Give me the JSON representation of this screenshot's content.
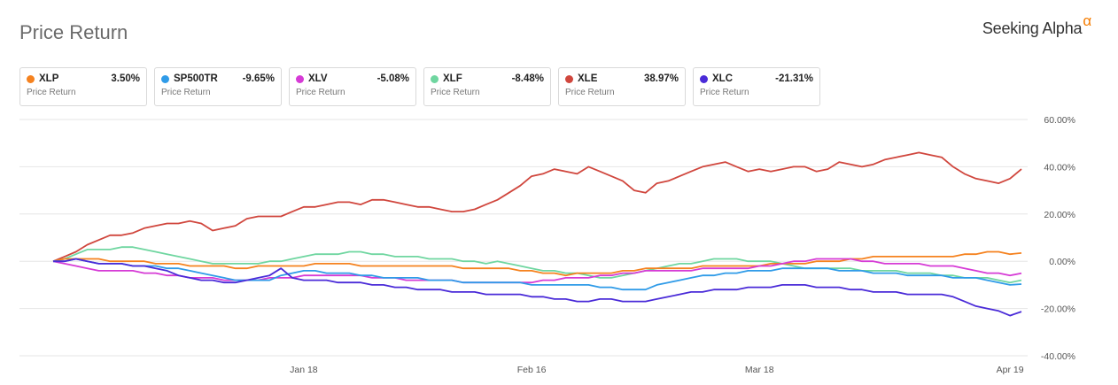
{
  "header": {
    "title": "Price Return",
    "brand": "Seeking Alpha",
    "brand_symbol": "α"
  },
  "legend": [
    {
      "ticker": "XLP",
      "value": "3.50%",
      "sub": "Price Return",
      "color": "#f5821f"
    },
    {
      "ticker": "SP500TR",
      "value": "-9.65%",
      "sub": "Price Return",
      "color": "#2f9be8"
    },
    {
      "ticker": "XLV",
      "value": "-5.08%",
      "sub": "Price Return",
      "color": "#d63bd6"
    },
    {
      "ticker": "XLF",
      "value": "-8.48%",
      "sub": "Price Return",
      "color": "#6fd6a0"
    },
    {
      "ticker": "XLE",
      "value": "38.97%",
      "sub": "Price Return",
      "color": "#d0463d"
    },
    {
      "ticker": "XLC",
      "value": "-21.31%",
      "sub": "Price Return",
      "color": "#4a2bd8"
    }
  ],
  "chart_data": {
    "type": "line",
    "title": "Price Return",
    "xlabel": "",
    "ylabel": "",
    "ylim": [
      -40,
      60
    ],
    "y_ticks": [
      "60.00%",
      "40.00%",
      "20.00%",
      "0.00%",
      "-20.00%",
      "-40.00%"
    ],
    "y_tick_values": [
      60,
      40,
      20,
      0,
      -20,
      -40
    ],
    "x_ticks": [
      "Jan 18",
      "Feb 16",
      "Mar 18",
      "Apr 19"
    ],
    "x_tick_index": [
      22,
      42,
      62,
      84
    ],
    "grid": true,
    "series": [
      {
        "name": "XLE",
        "color": "#d0463d",
        "values": [
          0,
          2,
          4,
          7,
          9,
          11,
          11,
          12,
          14,
          15,
          16,
          16,
          17,
          16,
          13,
          14,
          15,
          18,
          19,
          19,
          19,
          21,
          23,
          23,
          24,
          25,
          25,
          24,
          26,
          26,
          25,
          24,
          23,
          23,
          22,
          21,
          21,
          22,
          24,
          26,
          29,
          32,
          36,
          37,
          39,
          38,
          37,
          40,
          38,
          36,
          34,
          30,
          29,
          33,
          34,
          36,
          38,
          40,
          41,
          42,
          40,
          38,
          39,
          38,
          39,
          40,
          40,
          38,
          39,
          42,
          41,
          40,
          41,
          43,
          44,
          45,
          46,
          45,
          44,
          40,
          37,
          35,
          34,
          33,
          35,
          39
        ]
      },
      {
        "name": "XLF",
        "color": "#6fd6a0",
        "values": [
          0,
          1,
          3,
          5,
          5,
          5,
          6,
          6,
          5,
          4,
          3,
          2,
          1,
          0,
          -1,
          -1,
          -1,
          -1,
          -1,
          0,
          0,
          1,
          2,
          3,
          3,
          3,
          4,
          4,
          3,
          3,
          2,
          2,
          2,
          1,
          1,
          1,
          0,
          0,
          -1,
          0,
          -1,
          -2,
          -3,
          -4,
          -4,
          -5,
          -5,
          -6,
          -7,
          -7,
          -6,
          -5,
          -4,
          -3,
          -2,
          -1,
          -1,
          0,
          1,
          1,
          1,
          0,
          0,
          0,
          -1,
          -2,
          -3,
          -3,
          -3,
          -3,
          -3,
          -4,
          -4,
          -4,
          -4,
          -5,
          -5,
          -5,
          -6,
          -6,
          -7,
          -7,
          -7,
          -8,
          -9,
          -8
        ]
      },
      {
        "name": "XLP",
        "color": "#f5821f",
        "values": [
          0,
          1,
          1,
          1,
          1,
          0,
          0,
          0,
          0,
          -1,
          -1,
          -1,
          -2,
          -2,
          -2,
          -2,
          -3,
          -3,
          -2,
          -2,
          -2,
          -2,
          -2,
          -1,
          -1,
          -1,
          -1,
          -2,
          -2,
          -2,
          -2,
          -2,
          -2,
          -2,
          -2,
          -2,
          -3,
          -3,
          -3,
          -3,
          -3,
          -4,
          -4,
          -5,
          -5,
          -6,
          -5,
          -5,
          -5,
          -5,
          -4,
          -4,
          -3,
          -3,
          -3,
          -3,
          -3,
          -2,
          -2,
          -2,
          -2,
          -2,
          -2,
          -1,
          -1,
          -1,
          -1,
          0,
          0,
          0,
          1,
          1,
          2,
          2,
          2,
          2,
          2,
          2,
          2,
          2,
          3,
          3,
          4,
          4,
          3,
          3.5
        ]
      },
      {
        "name": "XLV",
        "color": "#d63bd6",
        "values": [
          0,
          -1,
          -2,
          -3,
          -4,
          -4,
          -4,
          -4,
          -5,
          -5,
          -6,
          -6,
          -7,
          -7,
          -7,
          -8,
          -8,
          -8,
          -8,
          -7,
          -7,
          -7,
          -6,
          -6,
          -6,
          -6,
          -6,
          -6,
          -7,
          -7,
          -7,
          -8,
          -8,
          -8,
          -8,
          -8,
          -9,
          -9,
          -9,
          -9,
          -9,
          -9,
          -9,
          -8,
          -8,
          -7,
          -7,
          -7,
          -6,
          -6,
          -5,
          -5,
          -4,
          -4,
          -4,
          -4,
          -4,
          -3,
          -3,
          -3,
          -3,
          -3,
          -2,
          -2,
          -1,
          0,
          0,
          1,
          1,
          1,
          1,
          0,
          0,
          -1,
          -1,
          -1,
          -1,
          -2,
          -2,
          -2,
          -3,
          -4,
          -5,
          -5,
          -6,
          -5.08
        ]
      },
      {
        "name": "SP500TR",
        "color": "#2f9be8",
        "values": [
          0,
          0,
          1,
          0,
          -1,
          -1,
          -1,
          -2,
          -2,
          -2,
          -3,
          -3,
          -4,
          -5,
          -6,
          -7,
          -8,
          -8,
          -8,
          -8,
          -6,
          -5,
          -4,
          -4,
          -5,
          -5,
          -5,
          -6,
          -6,
          -7,
          -7,
          -7,
          -7,
          -8,
          -8,
          -8,
          -9,
          -9,
          -9,
          -9,
          -9,
          -9,
          -10,
          -10,
          -10,
          -10,
          -10,
          -10,
          -11,
          -11,
          -12,
          -12,
          -12,
          -10,
          -9,
          -8,
          -7,
          -6,
          -6,
          -5,
          -5,
          -4,
          -4,
          -4,
          -3,
          -3,
          -3,
          -3,
          -3,
          -4,
          -4,
          -4,
          -5,
          -5,
          -5,
          -6,
          -6,
          -6,
          -6,
          -7,
          -7,
          -7,
          -8,
          -9,
          -10,
          -9.65
        ]
      },
      {
        "name": "XLC",
        "color": "#4a2bd8",
        "values": [
          0,
          0,
          1,
          0,
          -1,
          -1,
          -1,
          -2,
          -2,
          -3,
          -4,
          -6,
          -7,
          -8,
          -8,
          -9,
          -9,
          -8,
          -7,
          -6,
          -3,
          -7,
          -8,
          -8,
          -8,
          -9,
          -9,
          -9,
          -10,
          -10,
          -11,
          -11,
          -12,
          -12,
          -12,
          -13,
          -13,
          -13,
          -14,
          -14,
          -14,
          -14,
          -15,
          -15,
          -16,
          -16,
          -17,
          -17,
          -16,
          -16,
          -17,
          -17,
          -17,
          -16,
          -15,
          -14,
          -13,
          -13,
          -12,
          -12,
          -12,
          -11,
          -11,
          -11,
          -10,
          -10,
          -10,
          -11,
          -11,
          -11,
          -12,
          -12,
          -13,
          -13,
          -13,
          -14,
          -14,
          -14,
          -14,
          -15,
          -17,
          -19,
          -20,
          -21,
          -23,
          -21.31
        ]
      }
    ]
  }
}
